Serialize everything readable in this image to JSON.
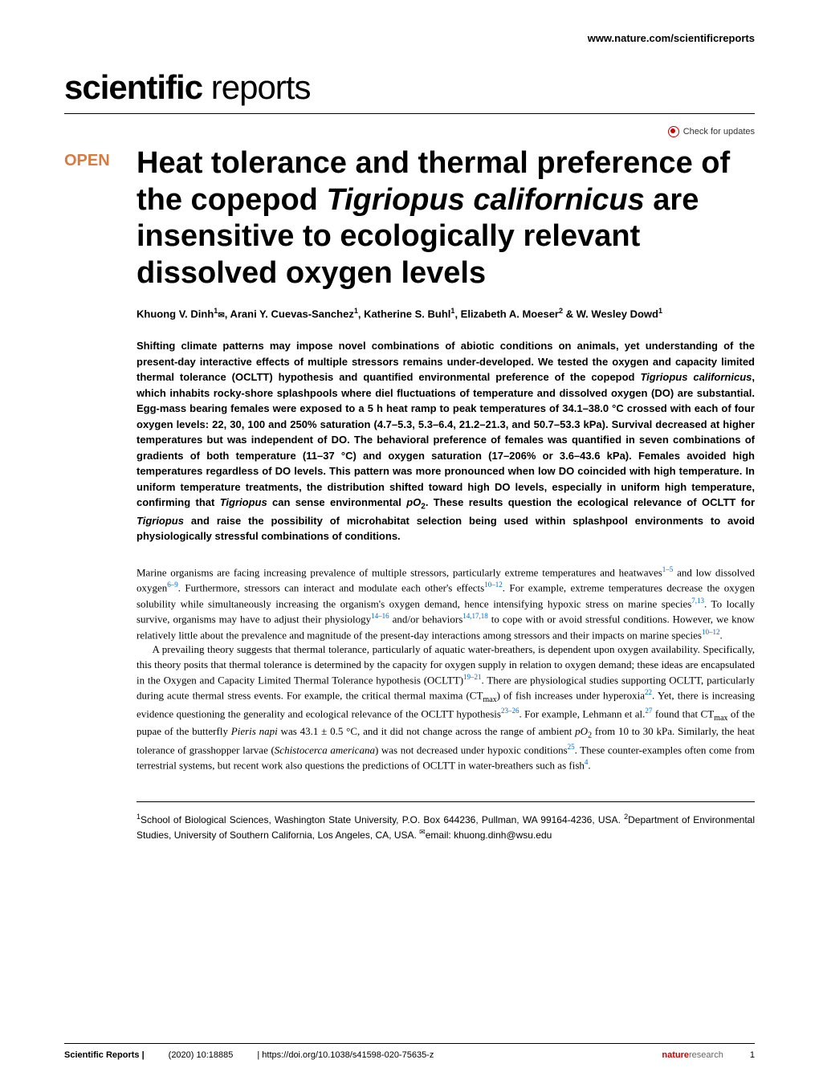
{
  "header": {
    "url": "www.nature.com/scientificreports",
    "journal_name_bold": "scientific",
    "journal_name_light": "reports",
    "check_updates": "Check for updates"
  },
  "article": {
    "open_badge": "OPEN",
    "title_part1": "Heat tolerance and thermal preference of the copepod ",
    "title_italic": "Tigriopus californicus",
    "title_part2": " are insensitive to ecologically relevant dissolved oxygen levels",
    "authors": "Khuong V. Dinh",
    "author1_sup": "1",
    "author1_mail": "✉",
    "author2": ", Arani Y. Cuevas-Sanchez",
    "author2_sup": "1",
    "author3": ", Katherine S. Buhl",
    "author3_sup": "1",
    "author4": ", Elizabeth A. Moeser",
    "author4_sup": "2",
    "author5": " & W. Wesley Dowd",
    "author5_sup": "1"
  },
  "abstract": {
    "text1": "Shifting climate patterns may impose novel combinations of abiotic conditions on animals, yet understanding of the present-day interactive effects of multiple stressors remains under-developed. We tested the oxygen and capacity limited thermal tolerance (OCLTT) hypothesis and quantified environmental preference of the copepod ",
    "italic1": "Tigriopus californicus",
    "text2": ", which inhabits rocky-shore splashpools where diel fluctuations of temperature and dissolved oxygen (DO) are substantial. Egg-mass bearing females were exposed to a 5 h heat ramp to peak temperatures of 34.1–38.0 °C crossed with each of four oxygen levels: 22, 30, 100 and 250% saturation (4.7–5.3, 5.3–6.4, 21.2–21.3, and 50.7–53.3 kPa). Survival decreased at higher temperatures but was independent of DO. The behavioral preference of females was quantified in seven combinations of gradients of both temperature (11–37 °C) and oxygen saturation (17–206% or 3.6–43.6 kPa). Females avoided high temperatures regardless of DO levels. This pattern was more pronounced when low DO coincided with high temperature. In uniform temperature treatments, the distribution shifted toward high DO levels, especially in uniform high temperature, confirming that ",
    "italic2": "Tigriopus",
    "text3": " can sense environmental ",
    "po2": "pO",
    "sub2": "2",
    "text4": ". These results question the ecological relevance of OCLTT for ",
    "italic3": "Tigriopus",
    "text5": " and raise the possibility of microhabitat selection being used within splashpool environments to avoid physiologically stressful combinations of conditions."
  },
  "body": {
    "p1_text1": "Marine organisms are facing increasing prevalence of multiple stressors, particularly extreme temperatures and heatwaves",
    "p1_ref1": "1–5",
    "p1_text2": " and low dissolved oxygen",
    "p1_ref2": "6–9",
    "p1_text3": ". Furthermore, stressors can interact and modulate each other's effects",
    "p1_ref3": "10–12",
    "p1_text4": ". For example, extreme temperatures decrease the oxygen solubility while simultaneously increasing the organism's oxygen demand, hence intensifying hypoxic stress on marine species",
    "p1_ref4": "7,13",
    "p1_text5": ". To locally survive, organisms may have to adjust their physiology",
    "p1_ref5": "14–16",
    "p1_text6": " and/or behaviors",
    "p1_ref6": "14,17,18",
    "p1_text7": " to cope with or avoid stressful conditions. However, we know relatively little about the prevalence and magnitude of the present-day interactions among stressors and their impacts on marine species",
    "p1_ref7": "10–12",
    "p1_text8": ".",
    "p2_text1": "A prevailing theory suggests that thermal tolerance, particularly of aquatic water-breathers, is dependent upon oxygen availability. Specifically, this theory posits that thermal tolerance is determined by the capacity for oxygen supply in relation to oxygen demand; these ideas are encapsulated in the Oxygen and Capacity Limited Thermal Tolerance hypothesis (OCLTT)",
    "p2_ref1": "19–21",
    "p2_text2": ". There are physiological studies supporting OCLTT, particularly during acute thermal stress events. For example, the critical thermal maxima (CT",
    "p2_sub1": "max",
    "p2_text3": ") of fish increases under hyperoxia",
    "p2_ref2": "22",
    "p2_text4": ". Yet, there is increasing evidence questioning the generality and ecological relevance of the OCLTT hypothesis",
    "p2_ref3": "23–26",
    "p2_text5": ". For example, Lehmann et al.",
    "p2_ref4": "27",
    "p2_text6": " found that CT",
    "p2_sub2": "max",
    "p2_text7": " of the pupae of the butterfly ",
    "p2_italic1": "Pieris napi",
    "p2_text8": " was 43.1 ± 0.5 °C, and it did not change across the range of ambient ",
    "p2_po2": "pO",
    "p2_sub3": "2",
    "p2_text9": " from 10 to 30 kPa. Similarly, the heat tolerance of grasshopper larvae (",
    "p2_italic2": "Schistocerca americana",
    "p2_text10": ") was not decreased under hypoxic conditions",
    "p2_ref5": "25",
    "p2_text11": ". These counter-examples often come from terrestrial systems, but recent work also questions the predictions of OCLTT in water-breathers such as fish",
    "p2_ref6": "4",
    "p2_text12": "."
  },
  "affiliations": {
    "aff1_sup": "1",
    "aff1": "School of Biological Sciences, Washington State University, P.O. Box 644236, Pullman, WA 99164-4236, USA. ",
    "aff2_sup": "2",
    "aff2": "Department of Environmental Studies, University of Southern California, Los Angeles, CA, USA. ",
    "email_icon": "✉",
    "email_label": "email: khuong.dinh@wsu.edu"
  },
  "footer": {
    "journal": "Scientific Reports |",
    "citation": "(2020) 10:18885",
    "doi": "| https://doi.org/10.1038/s41598-020-75635-z",
    "nature": "nature",
    "research": "research",
    "page": "1"
  }
}
